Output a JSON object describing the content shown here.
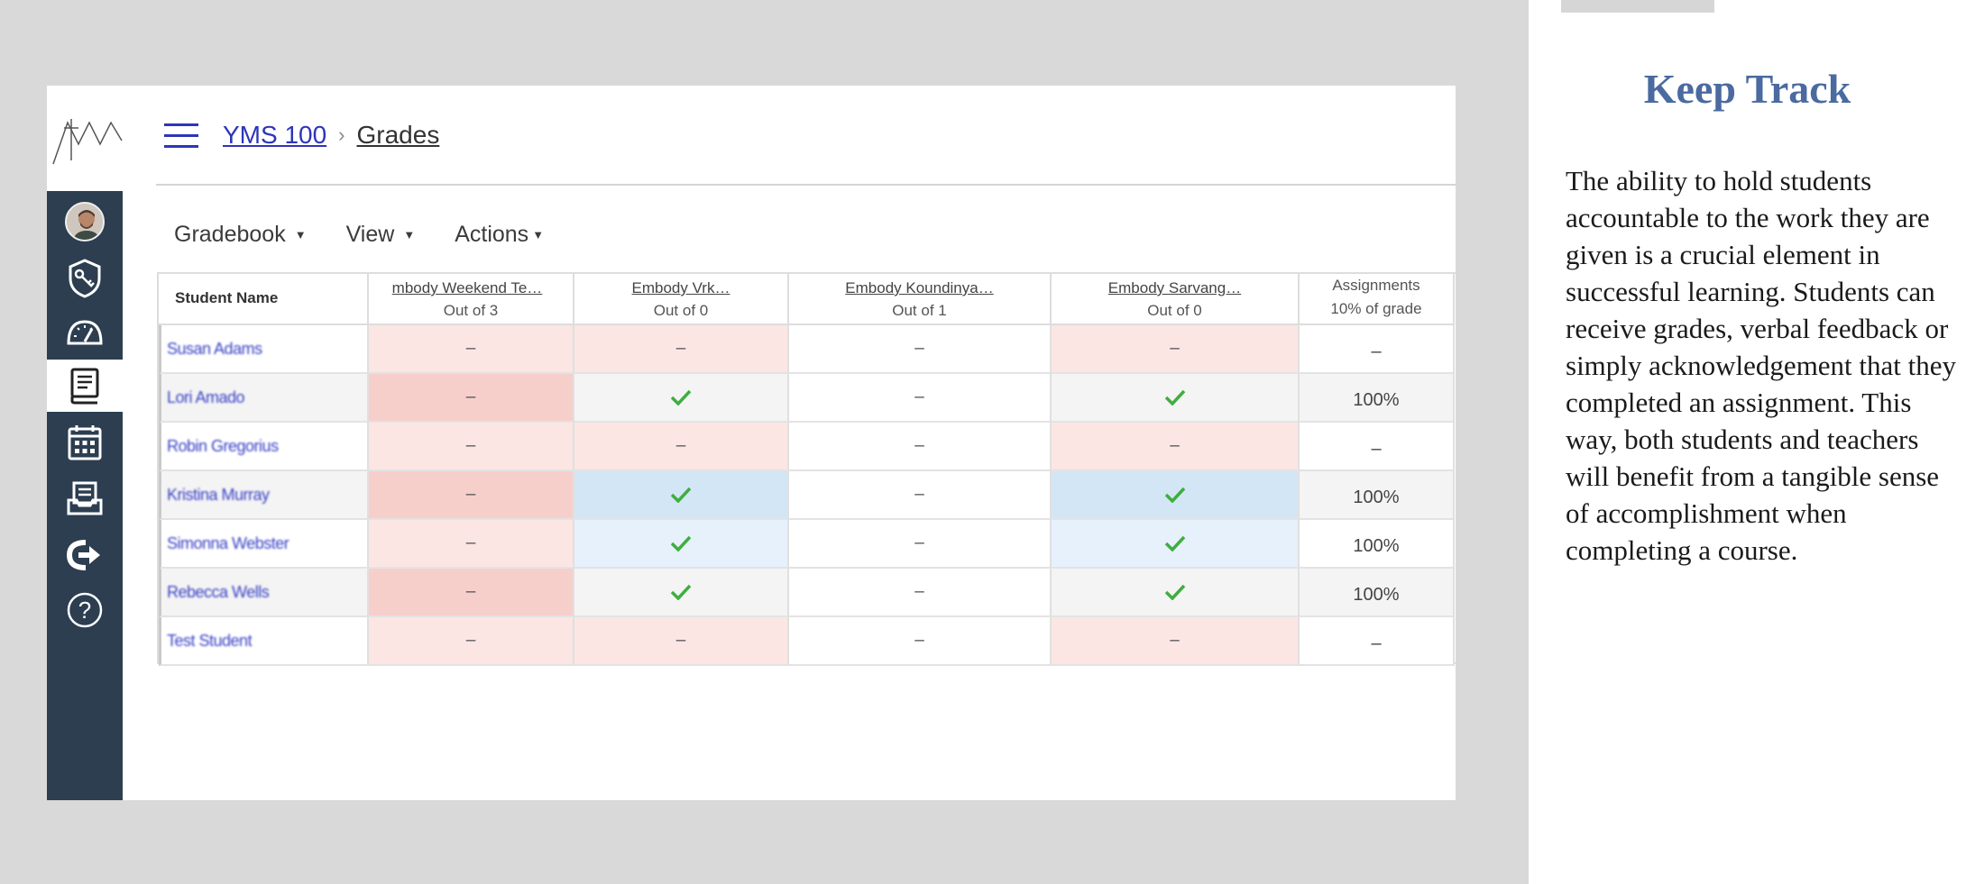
{
  "breadcrumb": {
    "course": "YMS 100",
    "page": "Grades"
  },
  "toolbar": {
    "gradebook": "Gradebook",
    "view": "View",
    "actions": "Actions"
  },
  "nav": {
    "items": [
      "avatar",
      "key-badge-icon",
      "speedometer-icon",
      "grades-book-icon",
      "calendar-icon",
      "inbox-tray-icon",
      "logout-icon",
      "help-icon"
    ],
    "active": "grades-book-icon",
    "color": "#2c3e50"
  },
  "gradebook": {
    "student_header": "Student Name",
    "columns": [
      {
        "title": "mbody Weekend Te…",
        "sub": "Out of 3"
      },
      {
        "title": "Embody Vrk…",
        "sub": "Out of 0"
      },
      {
        "title": "Embody Koundinya…",
        "sub": "Out of 1"
      },
      {
        "title": "Embody Sarvang…",
        "sub": "Out of 0"
      }
    ],
    "assignments": {
      "title": "Assignments",
      "sub": "10% of grade"
    },
    "rows": [
      {
        "name": "Susan Adams",
        "cells": [
          "–",
          "–",
          "–",
          "–"
        ],
        "total": "–"
      },
      {
        "name": "Lori Amado",
        "cells": [
          "–",
          "✓",
          "–",
          "✓"
        ],
        "total": "100%"
      },
      {
        "name": "Robin Gregorius",
        "cells": [
          "–",
          "–",
          "–",
          "–"
        ],
        "total": "–"
      },
      {
        "name": "Kristina Murray",
        "cells": [
          "–",
          "✓",
          "–",
          "✓"
        ],
        "total": "100%"
      },
      {
        "name": "Simonna Webster",
        "cells": [
          "–",
          "✓",
          "–",
          "✓"
        ],
        "total": "100%"
      },
      {
        "name": "Rebecca Wells",
        "cells": [
          "–",
          "✓",
          "–",
          "✓"
        ],
        "total": "100%"
      },
      {
        "name": "Test Student",
        "cells": [
          "–",
          "–",
          "–",
          "–"
        ],
        "total": "–"
      }
    ],
    "colors": {
      "pink_light": "#fbe6e4",
      "pink_dark": "#f6cfcb",
      "blue_dark": "#d3e6f5",
      "blue_light": "#e6f1fb",
      "gray": "#f4f4f4",
      "check": "#3fae3f"
    }
  },
  "panel": {
    "title": "Keep Track",
    "body": "The ability to hold students accountable to the work they are given is a crucial element in successful learning.  Students can receive grades, verbal feedback or simply acknowledgement that they completed an assignment.  This way, both students and teachers will benefit from a tangible sense of accomplishment when completing a course."
  }
}
